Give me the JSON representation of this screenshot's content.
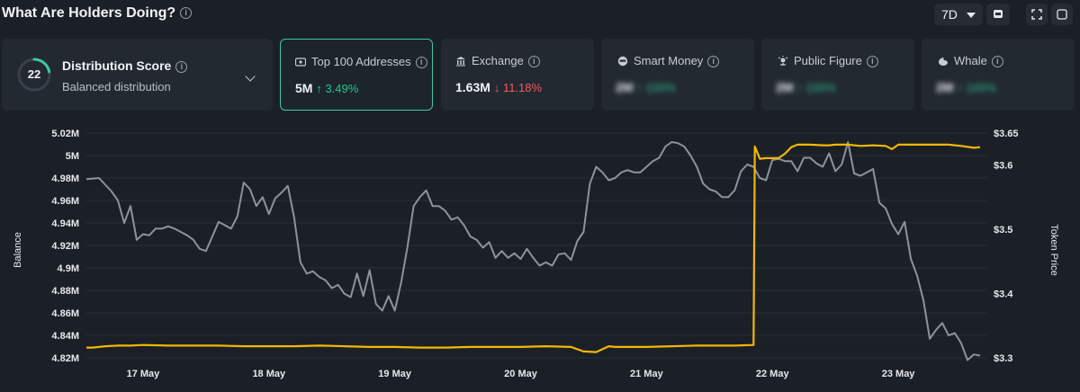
{
  "header": {
    "title": "What Are Holders Doing?",
    "range": "7D"
  },
  "cards": {
    "distribution": {
      "score": "22",
      "title": "Distribution Score",
      "subtitle": "Balanced distribution"
    },
    "top100": {
      "label": "Top 100 Addresses",
      "value": "5M",
      "change": "↑ 3.49%"
    },
    "exchange": {
      "label": "Exchange",
      "value": "1.63M",
      "change": "↓ 11.18%"
    },
    "smart_money": {
      "label": "Smart Money",
      "value": "2M",
      "change": "↑ 100%"
    },
    "public_figure": {
      "label": "Public Figure",
      "value": "2M",
      "change": "↑ 100%"
    },
    "whale": {
      "label": "Whale",
      "value": "2M",
      "change": "↑ 100%"
    }
  },
  "colors": {
    "accent": "#3cc8a0",
    "up": "#29c48a",
    "down": "#f05a5a",
    "balance_line": "#8c939c",
    "price_line": "#f2b705"
  },
  "chart_data": {
    "type": "line",
    "xlabel": "",
    "ylabel": "Balance",
    "y2label": "Token Price",
    "x_ticks": [
      "17 May",
      "18 May",
      "19 May",
      "20 May",
      "21 May",
      "22 May",
      "23 May"
    ],
    "y_ticks": [
      "4.82M",
      "4.84M",
      "4.86M",
      "4.88M",
      "4.9M",
      "4.92M",
      "4.94M",
      "4.96M",
      "4.98M",
      "5M",
      "5.02M"
    ],
    "y2_ticks": [
      "$3.3",
      "$3.4",
      "$3.5",
      "$3.6",
      "$3.65"
    ],
    "ylim": [
      4.82,
      5.02
    ],
    "y2lim": [
      3.3,
      3.65
    ],
    "x_range_days": [
      16.55,
      23.7
    ],
    "grid": true,
    "series": [
      {
        "name": "Balance",
        "axis": "left",
        "x": [
          16.55,
          16.65,
          16.75,
          16.8,
          16.85,
          16.9,
          16.95,
          17.0,
          17.05,
          17.1,
          17.15,
          17.2,
          17.25,
          17.3,
          17.35,
          17.4,
          17.45,
          17.5,
          17.55,
          17.6,
          17.65,
          17.7,
          17.75,
          17.8,
          17.85,
          17.9,
          17.95,
          18.0,
          18.05,
          18.1,
          18.15,
          18.2,
          18.25,
          18.3,
          18.35,
          18.4,
          18.45,
          18.5,
          18.55,
          18.6,
          18.65,
          18.7,
          18.75,
          18.8,
          18.85,
          18.9,
          18.95,
          19.0,
          19.05,
          19.1,
          19.15,
          19.2,
          19.25,
          19.3,
          19.35,
          19.4,
          19.45,
          19.5,
          19.55,
          19.6,
          19.65,
          19.7,
          19.75,
          19.8,
          19.85,
          19.9,
          19.95,
          20.0,
          20.05,
          20.1,
          20.15,
          20.2,
          20.25,
          20.3,
          20.35,
          20.4,
          20.45,
          20.5,
          20.55,
          20.6,
          20.65,
          20.7,
          20.75,
          20.8,
          20.85,
          20.9,
          20.95,
          21.0,
          21.05,
          21.1,
          21.15,
          21.2,
          21.25,
          21.3,
          21.35,
          21.4,
          21.45,
          21.5,
          21.55,
          21.6,
          21.65,
          21.7,
          21.75,
          21.8,
          21.85,
          21.9,
          21.95,
          22.0,
          22.05,
          22.1,
          22.15,
          22.2,
          22.25,
          22.3,
          22.35,
          22.4,
          22.45,
          22.5,
          22.55,
          22.6,
          22.65,
          22.7,
          22.75,
          22.8,
          22.85,
          22.9,
          22.95,
          23.0,
          23.05,
          23.1,
          23.15,
          23.2,
          23.25,
          23.3,
          23.35,
          23.4,
          23.45,
          23.5,
          23.55,
          23.6,
          23.65
        ],
        "y": [
          4.979,
          4.98,
          4.968,
          4.96,
          4.94,
          4.955,
          4.925,
          4.93,
          4.929,
          4.935,
          4.935,
          4.937,
          4.935,
          4.932,
          4.929,
          4.925,
          4.917,
          4.915,
          4.928,
          4.941,
          4.938,
          4.935,
          4.946,
          4.976,
          4.97,
          4.955,
          4.963,
          4.948,
          4.962,
          4.967,
          4.973,
          4.945,
          4.905,
          4.895,
          4.897,
          4.892,
          4.889,
          4.882,
          4.885,
          4.877,
          4.874,
          4.895,
          4.875,
          4.898,
          4.868,
          4.862,
          4.875,
          4.862,
          4.887,
          4.918,
          4.955,
          4.963,
          4.969,
          4.955,
          4.955,
          4.951,
          4.943,
          4.945,
          4.938,
          4.928,
          4.925,
          4.918,
          4.923,
          4.909,
          4.915,
          4.909,
          4.913,
          4.908,
          4.917,
          4.909,
          4.902,
          4.905,
          4.902,
          4.912,
          4.913,
          4.907,
          4.924,
          4.932,
          4.975,
          4.99,
          4.985,
          4.978,
          4.98,
          4.985,
          4.987,
          4.985,
          4.985,
          4.99,
          4.995,
          4.998,
          5.008,
          5.012,
          5.011,
          5.008,
          5.0,
          4.99,
          4.975,
          4.97,
          4.968,
          4.963,
          4.963,
          4.969,
          4.986,
          4.992,
          4.99,
          4.98,
          4.978,
          4.996,
          4.997,
          4.995,
          4.995,
          4.986,
          4.998,
          4.998,
          4.993,
          4.99,
          5.002,
          4.986,
          4.992,
          5.012,
          4.984,
          4.982,
          4.985,
          4.988,
          4.958,
          4.953,
          4.939,
          4.93,
          4.941,
          4.908,
          4.893,
          4.871,
          4.837,
          4.845,
          4.851,
          4.84,
          4.842,
          4.833,
          4.818,
          4.823,
          4.822
        ]
      },
      {
        "name": "Token Price",
        "axis": "right",
        "x": [
          16.55,
          16.6,
          16.7,
          16.8,
          16.9,
          17.0,
          17.2,
          17.4,
          17.6,
          17.8,
          18.0,
          18.2,
          18.4,
          18.6,
          18.8,
          19.0,
          19.2,
          19.4,
          19.6,
          19.8,
          20.0,
          20.2,
          20.4,
          20.5,
          20.6,
          20.7,
          20.75,
          20.8,
          21.0,
          21.2,
          21.4,
          21.6,
          21.7,
          21.85,
          21.86,
          21.9,
          21.95,
          22.0,
          22.05,
          22.1,
          22.15,
          22.2,
          22.3,
          22.4,
          22.45,
          22.5,
          22.6,
          22.7,
          22.8,
          22.9,
          22.95,
          23.0,
          23.1,
          23.2,
          23.3,
          23.4,
          23.5,
          23.6,
          23.65
        ],
        "y": [
          3.316,
          3.316,
          3.318,
          3.319,
          3.319,
          3.32,
          3.319,
          3.319,
          3.319,
          3.318,
          3.318,
          3.318,
          3.319,
          3.318,
          3.317,
          3.317,
          3.316,
          3.316,
          3.317,
          3.317,
          3.317,
          3.318,
          3.317,
          3.31,
          3.309,
          3.318,
          3.317,
          3.317,
          3.317,
          3.318,
          3.319,
          3.319,
          3.319,
          3.32,
          3.629,
          3.61,
          3.611,
          3.611,
          3.611,
          3.618,
          3.628,
          3.632,
          3.632,
          3.631,
          3.631,
          3.632,
          3.632,
          3.63,
          3.631,
          3.63,
          3.625,
          3.632,
          3.632,
          3.632,
          3.632,
          3.632,
          3.63,
          3.627,
          3.628
        ]
      }
    ]
  }
}
